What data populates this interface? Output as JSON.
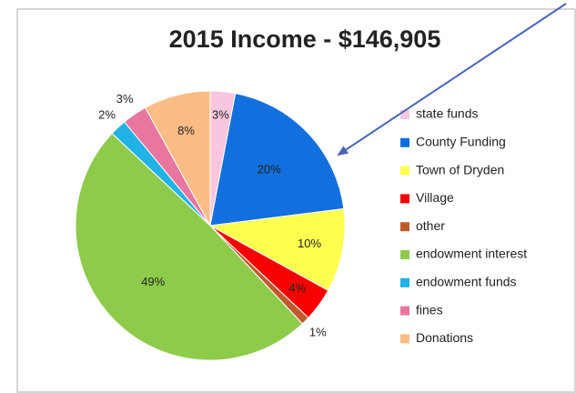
{
  "chart_data": {
    "type": "pie",
    "title": "2015 Income - $146,905",
    "categories": [
      "state funds",
      "County Funding",
      "Town of Dryden",
      "Village",
      "other",
      "endowment interest",
      "endowment funds",
      "fines",
      "Donations"
    ],
    "values": [
      3,
      20,
      10,
      4,
      1,
      49,
      2,
      3,
      8
    ],
    "value_labels": [
      "3%",
      "20%",
      "10%",
      "4%",
      "1%",
      "49%",
      "2%",
      "3%",
      "8%"
    ],
    "colors": [
      "#f8c6df",
      "#1170dd",
      "#ffff50",
      "#f90000",
      "#c05a2c",
      "#8fcb4b",
      "#21b3e6",
      "#e9769f",
      "#fbbd85"
    ],
    "legend": "right"
  }
}
